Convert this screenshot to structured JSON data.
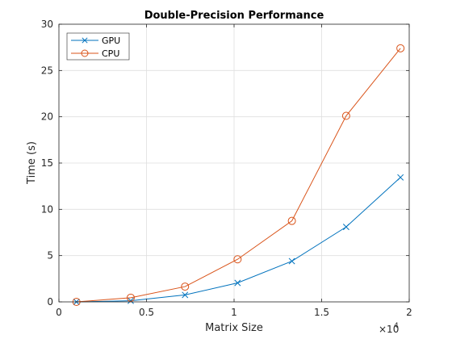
{
  "chart_data": {
    "type": "line",
    "title": "Double-Precision Performance",
    "xlabel": "Matrix Size",
    "ylabel": "Time (s)",
    "x_exponent_base": "×10",
    "x_exponent_power": "4",
    "xlim": [
      0,
      20000
    ],
    "ylim": [
      0,
      30
    ],
    "xticks": [
      0,
      5000,
      10000,
      15000,
      20000
    ],
    "xtick_labels": [
      "0",
      "0.5",
      "1",
      "1.5",
      "2"
    ],
    "yticks": [
      0,
      5,
      10,
      15,
      20,
      25,
      30
    ],
    "ytick_labels": [
      "0",
      "5",
      "10",
      "15",
      "20",
      "25",
      "30"
    ],
    "grid": true,
    "legend_position": "top-left",
    "series": [
      {
        "name": "GPU",
        "color": "#0072BD",
        "marker": "x",
        "x": [
          1000,
          4100,
          7200,
          10200,
          13300,
          16400,
          19500
        ],
        "values": [
          0.0,
          0.12,
          0.75,
          2.05,
          4.4,
          8.1,
          13.45
        ]
      },
      {
        "name": "CPU",
        "color": "#D95319",
        "marker": "o",
        "x": [
          1000,
          4100,
          7200,
          10200,
          13300,
          16400,
          19500
        ],
        "values": [
          0.0,
          0.45,
          1.65,
          4.6,
          8.75,
          20.1,
          27.4
        ]
      }
    ]
  }
}
